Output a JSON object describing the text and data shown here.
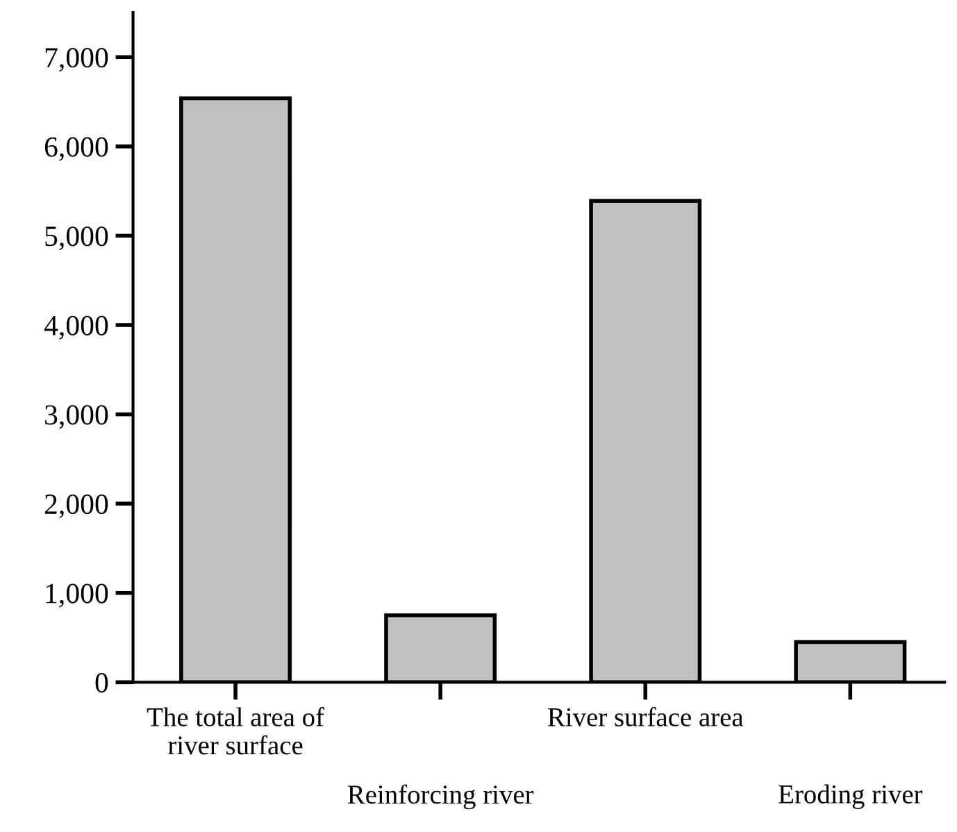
{
  "chart_data": {
    "type": "bar",
    "categories": [
      "The total area of\nriver surface",
      "Reinforcing river",
      "River surface area",
      "Eroding river"
    ],
    "values": [
      6540,
      750,
      5390,
      450
    ],
    "color": "#c0c0c0",
    "ylim": [
      0,
      7500
    ],
    "yticks": [
      0,
      {
        "value": 1000,
        "label": "1,000"
      },
      {
        "value": 2000,
        "label": "2,000"
      },
      {
        "value": 3000,
        "label": "3,000"
      },
      {
        "value": 4000,
        "label": "4,000"
      },
      {
        "value": 5000,
        "label": "5,000"
      },
      {
        "value": 6000,
        "label": "6,000"
      },
      {
        "value": 7000,
        "label": "7,000"
      }
    ],
    "grid": false,
    "legend": false
  }
}
